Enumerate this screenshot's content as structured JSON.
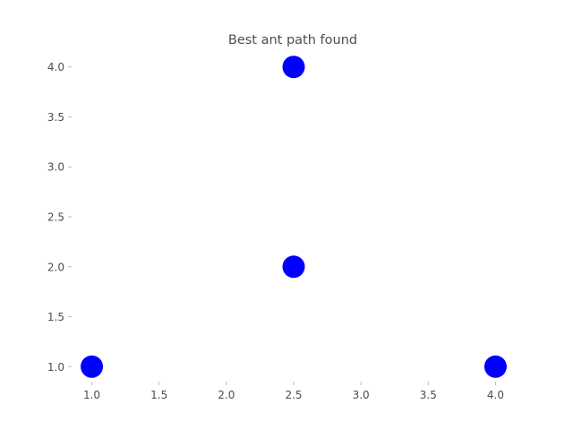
{
  "chart_data": {
    "type": "scatter",
    "title": "Best ant path found",
    "xlabel": "",
    "ylabel": "",
    "xlim": [
      0.85,
      4.15
    ],
    "ylim": [
      0.85,
      4.15
    ],
    "x_ticks": [
      1.0,
      1.5,
      2.0,
      2.5,
      3.0,
      3.5,
      4.0
    ],
    "x_tick_labels": [
      "1.0",
      "1.5",
      "2.0",
      "2.5",
      "3.0",
      "3.5",
      "4.0"
    ],
    "y_ticks": [
      1.0,
      1.5,
      2.0,
      2.5,
      3.0,
      3.5,
      4.0
    ],
    "y_tick_labels": [
      "1.0",
      "1.5",
      "2.0",
      "2.5",
      "3.0",
      "3.5",
      "4.0"
    ],
    "grid": false,
    "series": [
      {
        "color": "#0000ff",
        "points": [
          {
            "x": 1.0,
            "y": 1.0
          },
          {
            "x": 2.5,
            "y": 2.0
          },
          {
            "x": 2.5,
            "y": 4.0
          },
          {
            "x": 4.0,
            "y": 1.0
          }
        ]
      }
    ]
  }
}
